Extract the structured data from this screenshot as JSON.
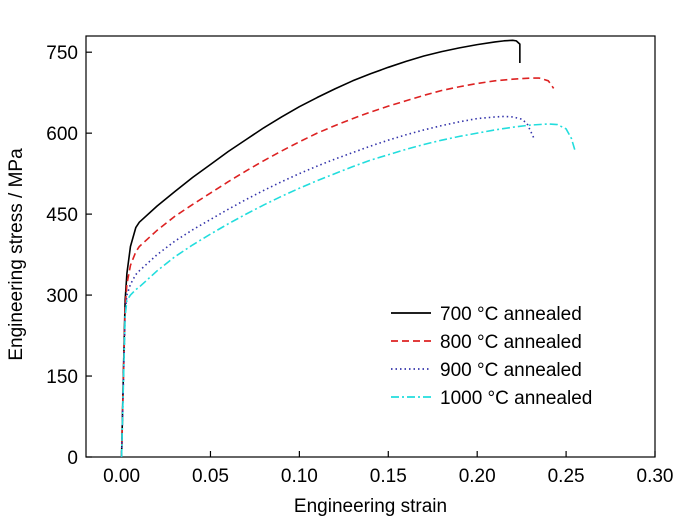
{
  "chart_data": {
    "type": "line",
    "xlabel": "Engineering strain",
    "ylabel": "Engineering stress / MPa",
    "xlim": [
      -0.02,
      0.3
    ],
    "ylim": [
      0,
      780
    ],
    "xticks": [
      0.0,
      0.05,
      0.1,
      0.15,
      0.2,
      0.25,
      0.3
    ],
    "xtick_labels": [
      "0.00",
      "0.05",
      "0.10",
      "0.15",
      "0.20",
      "0.25",
      "0.30"
    ],
    "yticks": [
      0,
      150,
      300,
      450,
      600,
      750
    ],
    "ytick_labels": [
      "0",
      "150",
      "300",
      "450",
      "600",
      "750"
    ],
    "grid": false,
    "legend_position": "bottom-right",
    "series": [
      {
        "name": "700 °C annealed",
        "color": "#000000",
        "dash": "solid",
        "x": [
          0.0,
          0.001,
          0.002,
          0.003,
          0.005,
          0.008,
          0.01,
          0.02,
          0.03,
          0.04,
          0.05,
          0.06,
          0.07,
          0.08,
          0.09,
          0.1,
          0.11,
          0.12,
          0.13,
          0.14,
          0.15,
          0.16,
          0.17,
          0.18,
          0.19,
          0.2,
          0.21,
          0.215,
          0.22,
          0.222,
          0.224,
          0.224
        ],
        "y": [
          0,
          150,
          290,
          340,
          390,
          425,
          435,
          465,
          492,
          518,
          542,
          566,
          588,
          610,
          630,
          649,
          666,
          682,
          697,
          710,
          722,
          733,
          743,
          751,
          758,
          764,
          769,
          771,
          772,
          771,
          765,
          730
        ]
      },
      {
        "name": "800 °C annealed",
        "color": "#dd2222",
        "dash": "dashed",
        "x": [
          0.0,
          0.001,
          0.002,
          0.003,
          0.005,
          0.008,
          0.01,
          0.02,
          0.03,
          0.04,
          0.05,
          0.06,
          0.07,
          0.08,
          0.09,
          0.1,
          0.11,
          0.12,
          0.13,
          0.14,
          0.15,
          0.16,
          0.17,
          0.18,
          0.19,
          0.2,
          0.21,
          0.22,
          0.23,
          0.235,
          0.24,
          0.243
        ],
        "y": [
          0,
          140,
          275,
          320,
          355,
          380,
          390,
          420,
          446,
          468,
          489,
          510,
          530,
          549,
          567,
          584,
          600,
          614,
          627,
          639,
          650,
          660,
          670,
          679,
          686,
          692,
          697,
          700,
          702,
          702,
          697,
          683
        ]
      },
      {
        "name": "900 °C annealed",
        "color": "#3333aa",
        "dash": "dotted",
        "x": [
          0.0,
          0.001,
          0.002,
          0.003,
          0.005,
          0.008,
          0.01,
          0.02,
          0.03,
          0.04,
          0.05,
          0.06,
          0.07,
          0.08,
          0.09,
          0.1,
          0.11,
          0.12,
          0.13,
          0.14,
          0.15,
          0.16,
          0.17,
          0.18,
          0.19,
          0.2,
          0.21,
          0.215,
          0.22,
          0.225,
          0.228,
          0.23,
          0.232
        ],
        "y": [
          0,
          135,
          265,
          300,
          320,
          338,
          345,
          375,
          400,
          421,
          440,
          459,
          477,
          494,
          510,
          525,
          539,
          552,
          564,
          576,
          587,
          597,
          606,
          614,
          621,
          627,
          630,
          631,
          630,
          626,
          618,
          604,
          590
        ]
      },
      {
        "name": "1000 °C annealed",
        "color": "#22dddd",
        "dash": "dashdot",
        "x": [
          0.0,
          0.001,
          0.002,
          0.003,
          0.005,
          0.008,
          0.01,
          0.02,
          0.03,
          0.04,
          0.05,
          0.06,
          0.07,
          0.08,
          0.09,
          0.1,
          0.11,
          0.12,
          0.13,
          0.14,
          0.15,
          0.16,
          0.17,
          0.18,
          0.19,
          0.2,
          0.21,
          0.22,
          0.23,
          0.24,
          0.245,
          0.25,
          0.253,
          0.255
        ],
        "y": [
          0,
          130,
          260,
          290,
          300,
          310,
          315,
          345,
          371,
          393,
          413,
          432,
          450,
          467,
          483,
          498,
          512,
          525,
          538,
          550,
          560,
          570,
          579,
          587,
          594,
          600,
          606,
          611,
          615,
          617,
          616,
          608,
          590,
          568
        ]
      }
    ]
  }
}
